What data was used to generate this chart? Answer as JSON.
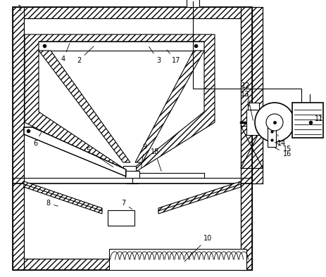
{
  "bg": "#ffffff",
  "ec": "#000000",
  "lw": 0.8,
  "lw2": 1.2,
  "fig_w": 4.64,
  "fig_h": 3.94,
  "dpi": 100
}
